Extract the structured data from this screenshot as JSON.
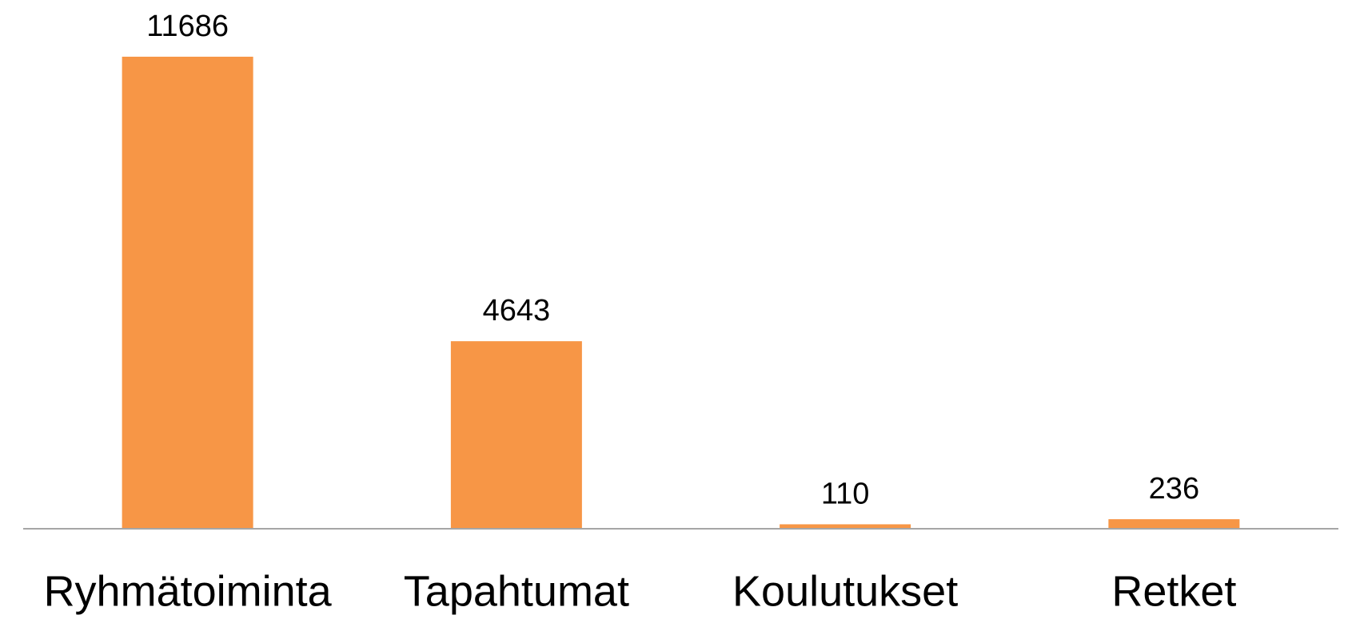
{
  "chart_data": {
    "type": "bar",
    "categories": [
      "Ryhmätoiminta",
      "Tapahtumat",
      "Koulutukset",
      "Retket"
    ],
    "values": [
      11686,
      4643,
      110,
      236
    ],
    "color": "#f79646"
  }
}
